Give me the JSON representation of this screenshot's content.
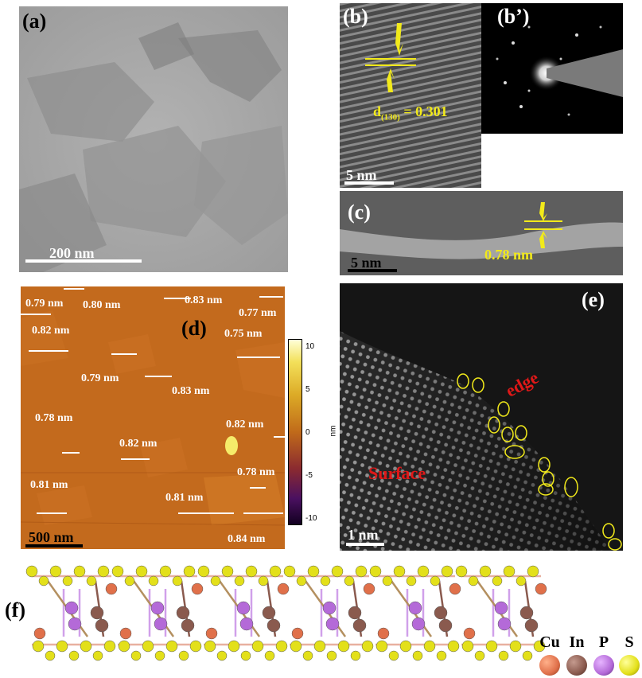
{
  "panels": {
    "a": {
      "label": "(a)",
      "scale_text": "200 nm"
    },
    "b": {
      "label": "(b)",
      "spacing_text": "d",
      "spacing_sub": "(130)",
      "spacing_value": " = 0.301",
      "scale_text": "5 nm"
    },
    "b_prime": {
      "label": "(b’)"
    },
    "c": {
      "label": "(c)",
      "thickness_text": "0.78 nm",
      "scale_text": "5 nm"
    },
    "d": {
      "label": "(d)",
      "scale_text": "500 nm",
      "colorbar_unit": "nm",
      "colorbar_ticks": [
        "10",
        "5",
        "0",
        "-5",
        "-10"
      ],
      "heights": [
        "0.79 nm",
        "0.80 nm",
        "0.83 nm",
        "0.77 nm",
        "0.82 nm",
        "0.75 nm",
        "0.79 nm",
        "0.83 nm",
        "0.78 nm",
        "0.82 nm",
        "0.82 nm",
        "0.78 nm",
        "0.81 nm",
        "0.81 nm",
        "0.84 nm"
      ]
    },
    "e": {
      "label": "(e)",
      "edge_text": "edge",
      "surface_text": "Surface",
      "scale_text": "1 nm"
    },
    "f": {
      "label": "(f)"
    }
  },
  "legend": [
    {
      "symbol": "Cu",
      "color": "#e0704a"
    },
    {
      "symbol": "In",
      "color": "#8a5a4e"
    },
    {
      "symbol": "P",
      "color": "#b46ad8"
    },
    {
      "symbol": "S",
      "color": "#e3e01a"
    }
  ],
  "colors": {
    "annotation_yellow": "#f2ea1a",
    "edge_red": "#e01818",
    "afm_orange": "#c0641a"
  }
}
